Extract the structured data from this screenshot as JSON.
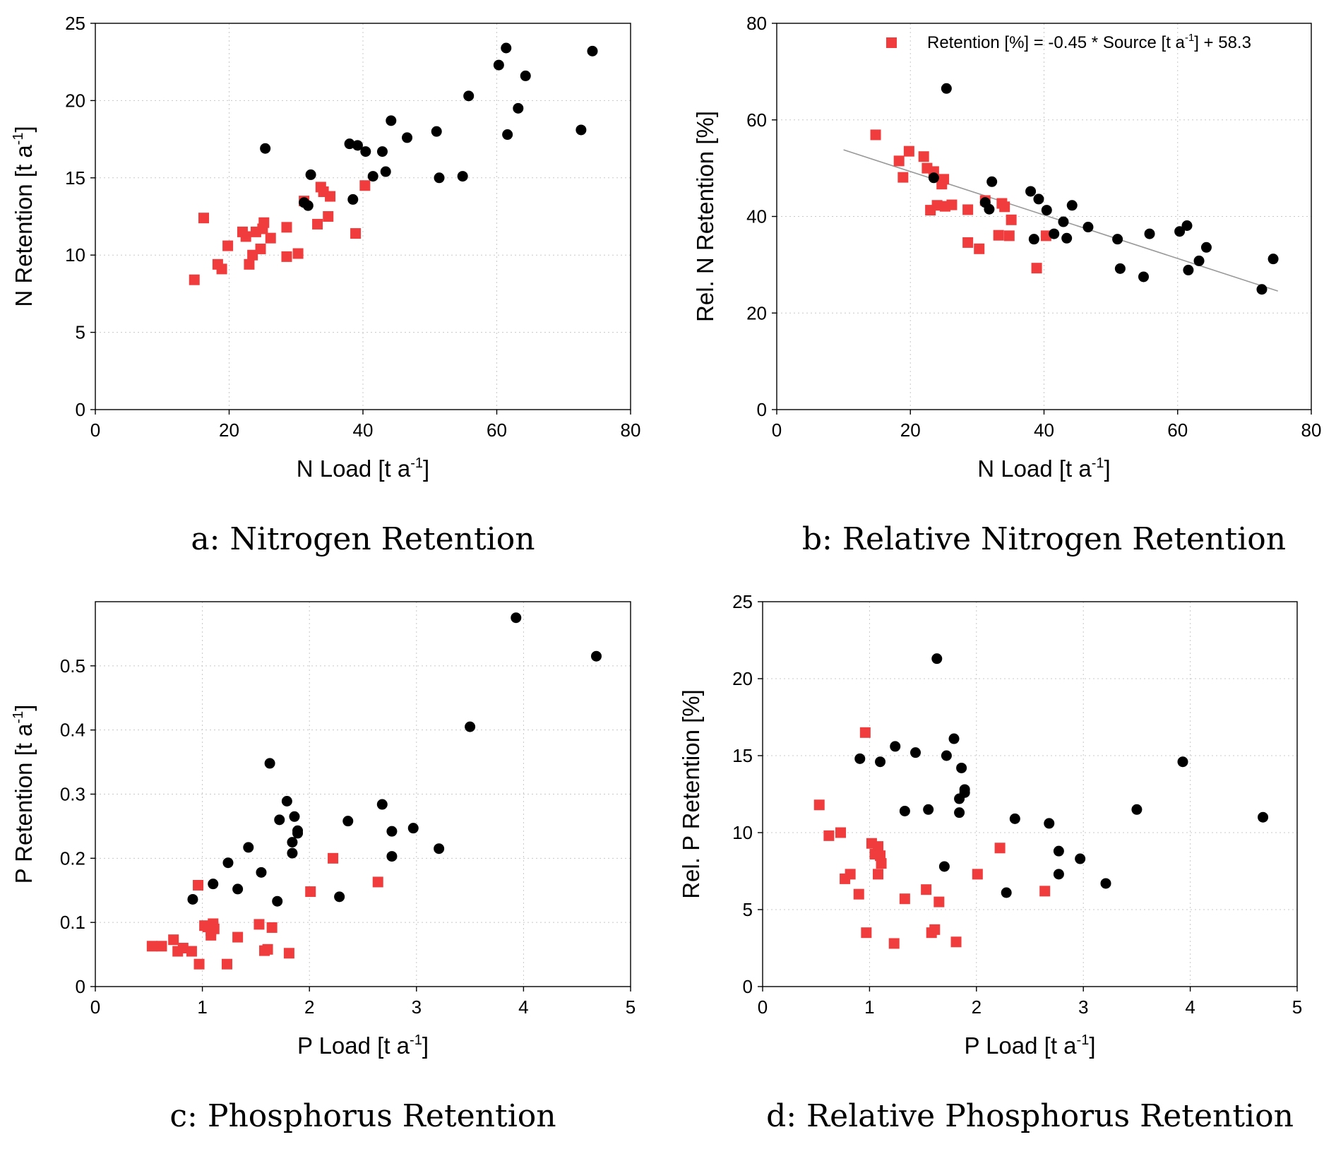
{
  "chart_data": [
    {
      "type": "scatter",
      "caption": "a: Nitrogen Retention",
      "xlabel": "N Load [t a",
      "ylabel": "N Retention [t a",
      "unit_superscript": "-1",
      "xlim": [
        0,
        80
      ],
      "ylim": [
        0,
        25
      ],
      "xticks": [
        0,
        20,
        40,
        60,
        80
      ],
      "yticks": [
        0,
        5,
        10,
        15,
        20,
        25
      ],
      "xtick_labels": [
        "0",
        "20",
        "40",
        "60",
        "80"
      ],
      "ytick_labels": [
        "0",
        "5",
        "10",
        "15",
        "20",
        "25"
      ],
      "grid": true,
      "series": [
        {
          "marker": "square",
          "color": "#f03c3c",
          "points": [
            [
              14.8,
              8.4
            ],
            [
              16.2,
              12.4
            ],
            [
              18.3,
              9.4
            ],
            [
              18.9,
              9.1
            ],
            [
              19.8,
              10.6
            ],
            [
              22.0,
              11.5
            ],
            [
              22.5,
              11.2
            ],
            [
              23.0,
              9.4
            ],
            [
              23.5,
              10.0
            ],
            [
              24.0,
              11.5
            ],
            [
              24.7,
              10.4
            ],
            [
              25.2,
              12.1
            ],
            [
              25.0,
              11.7
            ],
            [
              26.2,
              11.1
            ],
            [
              28.6,
              11.8
            ],
            [
              28.6,
              9.9
            ],
            [
              30.3,
              10.1
            ],
            [
              31.2,
              13.5
            ],
            [
              33.2,
              12.0
            ],
            [
              33.7,
              14.4
            ],
            [
              34.1,
              14.1
            ],
            [
              34.8,
              12.5
            ],
            [
              35.1,
              13.8
            ],
            [
              38.9,
              11.4
            ],
            [
              40.3,
              14.5
            ]
          ]
        },
        {
          "marker": "circle",
          "color": "#000000",
          "points": [
            [
              25.4,
              16.9
            ],
            [
              31.2,
              13.4
            ],
            [
              31.8,
              13.2
            ],
            [
              32.2,
              15.2
            ],
            [
              38.0,
              17.2
            ],
            [
              38.5,
              13.6
            ],
            [
              39.2,
              17.1
            ],
            [
              40.4,
              16.7
            ],
            [
              41.5,
              15.1
            ],
            [
              42.9,
              16.7
            ],
            [
              43.4,
              15.4
            ],
            [
              44.2,
              18.7
            ],
            [
              46.6,
              17.6
            ],
            [
              51.0,
              18.0
            ],
            [
              51.4,
              15.0
            ],
            [
              54.9,
              15.1
            ],
            [
              55.8,
              20.3
            ],
            [
              60.3,
              22.3
            ],
            [
              61.4,
              23.4
            ],
            [
              61.6,
              17.8
            ],
            [
              63.2,
              19.5
            ],
            [
              64.3,
              21.6
            ],
            [
              72.6,
              18.1
            ],
            [
              74.3,
              23.2
            ]
          ]
        }
      ]
    },
    {
      "type": "scatter",
      "caption": "b: Relative Nitrogen Retention",
      "xlabel": "N Load [t a",
      "ylabel": "Rel. N Retention [%]",
      "unit_superscript": "-1",
      "xlim": [
        0,
        80
      ],
      "ylim": [
        0,
        80
      ],
      "xticks": [
        0,
        20,
        40,
        60,
        80
      ],
      "yticks": [
        0,
        20,
        40,
        60,
        80
      ],
      "xtick_labels": [
        "0",
        "20",
        "40",
        "60",
        "80"
      ],
      "ytick_labels": [
        "0",
        "20",
        "40",
        "60",
        "80"
      ],
      "grid": true,
      "legend": {
        "label_pre": "Retention [%] = -0.45 * Source [t a",
        "label_sup": "-1",
        "label_post": "] + 58.3",
        "placement": "top-right"
      },
      "fit_line": {
        "slope": -0.45,
        "intercept": 58.3,
        "x_range": [
          10,
          75
        ],
        "color": "#999999"
      },
      "series": [
        {
          "marker": "square",
          "color": "#f03c3c",
          "points": [
            [
              14.8,
              56.9
            ],
            [
              18.3,
              51.5
            ],
            [
              18.9,
              48.1
            ],
            [
              19.8,
              53.5
            ],
            [
              22.0,
              52.4
            ],
            [
              22.5,
              50.0
            ],
            [
              23.0,
              41.3
            ],
            [
              23.5,
              49.3
            ],
            [
              24.0,
              42.3
            ],
            [
              24.7,
              46.7
            ],
            [
              25.2,
              42.1
            ],
            [
              25.0,
              47.7
            ],
            [
              26.2,
              42.4
            ],
            [
              28.6,
              41.4
            ],
            [
              28.6,
              34.6
            ],
            [
              30.3,
              33.3
            ],
            [
              31.2,
              43.3
            ],
            [
              33.2,
              36.1
            ],
            [
              33.7,
              42.7
            ],
            [
              34.1,
              42.0
            ],
            [
              34.8,
              36.0
            ],
            [
              35.1,
              39.3
            ],
            [
              38.9,
              29.3
            ],
            [
              40.3,
              36.0
            ]
          ]
        },
        {
          "marker": "circle",
          "color": "#000000",
          "points": [
            [
              25.4,
              66.5
            ],
            [
              23.5,
              48.0
            ],
            [
              31.2,
              42.9
            ],
            [
              31.8,
              41.5
            ],
            [
              32.2,
              47.2
            ],
            [
              38.0,
              45.2
            ],
            [
              38.5,
              35.3
            ],
            [
              39.2,
              43.6
            ],
            [
              40.4,
              41.3
            ],
            [
              41.5,
              36.4
            ],
            [
              42.9,
              38.9
            ],
            [
              43.4,
              35.5
            ],
            [
              44.2,
              42.3
            ],
            [
              46.6,
              37.8
            ],
            [
              51.0,
              35.3
            ],
            [
              51.4,
              29.2
            ],
            [
              54.9,
              27.5
            ],
            [
              55.8,
              36.4
            ],
            [
              60.3,
              36.9
            ],
            [
              61.4,
              38.1
            ],
            [
              61.6,
              28.9
            ],
            [
              63.2,
              30.8
            ],
            [
              64.3,
              33.6
            ],
            [
              72.6,
              24.9
            ],
            [
              74.3,
              31.2
            ]
          ]
        }
      ]
    },
    {
      "type": "scatter",
      "caption": "c: Phosphorus Retention",
      "xlabel": "P Load [t a",
      "ylabel": "P Retention [t a",
      "unit_superscript": "-1",
      "xlim": [
        0,
        5
      ],
      "ylim": [
        0,
        0.6
      ],
      "xticks": [
        0,
        1,
        2,
        3,
        4,
        5
      ],
      "yticks": [
        0,
        0.1,
        0.2,
        0.3,
        0.4,
        0.5
      ],
      "xtick_labels": [
        "0",
        "1",
        "2",
        "3",
        "4",
        "5"
      ],
      "ytick_labels": [
        "0",
        "0.1",
        "0.2",
        "0.3",
        "0.4",
        "0.5"
      ],
      "grid": true,
      "series": [
        {
          "marker": "square",
          "color": "#f03c3c",
          "points": [
            [
              0.53,
              0.063
            ],
            [
              0.62,
              0.063
            ],
            [
              0.73,
              0.073
            ],
            [
              0.77,
              0.055
            ],
            [
              0.82,
              0.06
            ],
            [
              0.9,
              0.055
            ],
            [
              0.96,
              0.158
            ],
            [
              0.97,
              0.035
            ],
            [
              1.02,
              0.095
            ],
            [
              1.05,
              0.093
            ],
            [
              1.08,
              0.087
            ],
            [
              1.08,
              0.08
            ],
            [
              1.1,
              0.098
            ],
            [
              1.11,
              0.09
            ],
            [
              1.23,
              0.035
            ],
            [
              1.33,
              0.077
            ],
            [
              1.53,
              0.097
            ],
            [
              1.58,
              0.056
            ],
            [
              1.61,
              0.058
            ],
            [
              1.65,
              0.092
            ],
            [
              1.81,
              0.052
            ],
            [
              2.01,
              0.148
            ],
            [
              2.22,
              0.2
            ],
            [
              2.64,
              0.163
            ]
          ]
        },
        {
          "marker": "circle",
          "color": "#000000",
          "points": [
            [
              0.91,
              0.136
            ],
            [
              1.1,
              0.16
            ],
            [
              1.24,
              0.193
            ],
            [
              1.33,
              0.152
            ],
            [
              1.43,
              0.217
            ],
            [
              1.55,
              0.178
            ],
            [
              1.63,
              0.348
            ],
            [
              1.7,
              0.133
            ],
            [
              1.72,
              0.26
            ],
            [
              1.79,
              0.289
            ],
            [
              1.84,
              0.208
            ],
            [
              1.84,
              0.225
            ],
            [
              1.86,
              0.265
            ],
            [
              1.89,
              0.243
            ],
            [
              1.89,
              0.239
            ],
            [
              2.28,
              0.14
            ],
            [
              2.36,
              0.258
            ],
            [
              2.68,
              0.284
            ],
            [
              2.77,
              0.242
            ],
            [
              2.77,
              0.203
            ],
            [
              2.97,
              0.247
            ],
            [
              3.21,
              0.215
            ],
            [
              3.5,
              0.405
            ],
            [
              3.93,
              0.575
            ],
            [
              4.68,
              0.515
            ]
          ]
        }
      ]
    },
    {
      "type": "scatter",
      "caption": "d: Relative Phosphorus Retention",
      "xlabel": "P Load [t a",
      "ylabel": "Rel. P Retention [%]",
      "unit_superscript": "-1",
      "xlim": [
        0,
        5
      ],
      "ylim": [
        0,
        25
      ],
      "xticks": [
        0,
        1,
        2,
        3,
        4,
        5
      ],
      "yticks": [
        0,
        5,
        10,
        15,
        20,
        25
      ],
      "xtick_labels": [
        "0",
        "1",
        "2",
        "3",
        "4",
        "5"
      ],
      "ytick_labels": [
        "0",
        "5",
        "10",
        "15",
        "20",
        "25"
      ],
      "grid": true,
      "series": [
        {
          "marker": "square",
          "color": "#f03c3c",
          "points": [
            [
              0.53,
              11.8
            ],
            [
              0.62,
              9.8
            ],
            [
              0.73,
              10.0
            ],
            [
              0.77,
              7.0
            ],
            [
              0.82,
              7.3
            ],
            [
              0.9,
              6.0
            ],
            [
              0.96,
              16.5
            ],
            [
              0.97,
              3.5
            ],
            [
              1.02,
              9.3
            ],
            [
              1.05,
              8.6
            ],
            [
              1.08,
              7.3
            ],
            [
              1.08,
              9.1
            ],
            [
              1.1,
              8.5
            ],
            [
              1.11,
              8.0
            ],
            [
              1.23,
              2.8
            ],
            [
              1.33,
              5.7
            ],
            [
              1.53,
              6.3
            ],
            [
              1.58,
              3.5
            ],
            [
              1.61,
              3.7
            ],
            [
              1.65,
              5.5
            ],
            [
              1.81,
              2.9
            ],
            [
              2.01,
              7.3
            ],
            [
              2.22,
              9.0
            ],
            [
              2.64,
              6.2
            ]
          ]
        },
        {
          "marker": "circle",
          "color": "#000000",
          "points": [
            [
              0.91,
              14.8
            ],
            [
              1.1,
              14.6
            ],
            [
              1.24,
              15.6
            ],
            [
              1.33,
              11.4
            ],
            [
              1.43,
              15.2
            ],
            [
              1.55,
              11.5
            ],
            [
              1.63,
              21.3
            ],
            [
              1.7,
              7.8
            ],
            [
              1.72,
              15.0
            ],
            [
              1.79,
              16.1
            ],
            [
              1.84,
              11.3
            ],
            [
              1.84,
              12.2
            ],
            [
              1.86,
              14.2
            ],
            [
              1.89,
              12.8
            ],
            [
              1.89,
              12.6
            ],
            [
              2.28,
              6.1
            ],
            [
              2.36,
              10.9
            ],
            [
              2.68,
              10.6
            ],
            [
              2.77,
              8.8
            ],
            [
              2.77,
              7.3
            ],
            [
              2.97,
              8.3
            ],
            [
              3.21,
              6.7
            ],
            [
              3.5,
              11.5
            ],
            [
              3.93,
              14.6
            ],
            [
              4.68,
              11.0
            ]
          ]
        }
      ]
    }
  ]
}
